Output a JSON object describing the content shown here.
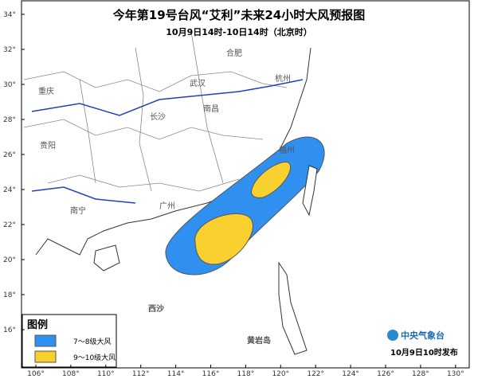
{
  "header": {
    "title": "今年第19号台风“艾利”未来24小时大风预报图",
    "subtitle": "10月9日14时-10日14时（北京时）"
  },
  "latitude_labels": [
    "34°",
    "32°",
    "30°",
    "28°",
    "26°",
    "24°",
    "22°",
    "20°",
    "18°",
    "16°"
  ],
  "longitude_labels": [
    "106°",
    "108°",
    "110°",
    "112°",
    "114°",
    "116°",
    "118°",
    "120°",
    "122°",
    "124°",
    "126°",
    "128°",
    "130°"
  ],
  "places": [
    "重庆",
    "合肥",
    "武汉",
    "杭州",
    "长沙",
    "南昌",
    "贵阳",
    "福州",
    "南宁",
    "广州",
    "西沙",
    "黄岩岛"
  ],
  "legend": {
    "title": "图例",
    "items": [
      "7～8级大风",
      "9～10级大风"
    ]
  },
  "footer": {
    "agency": "中央气象台",
    "issued": "10月9日10时发布"
  }
}
